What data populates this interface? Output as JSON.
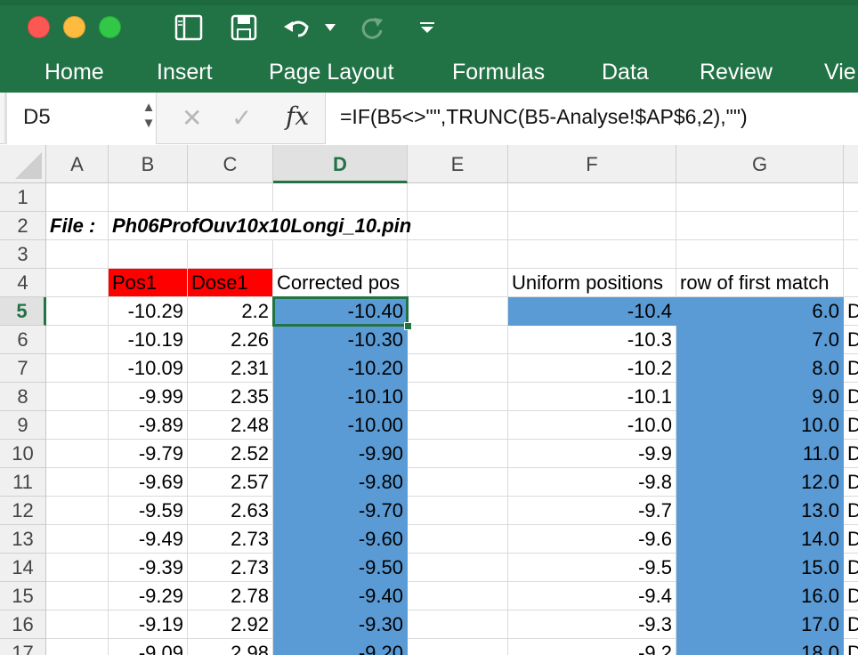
{
  "ribbon": {
    "tabs": [
      "Home",
      "Insert",
      "Page Layout",
      "Formulas",
      "Data",
      "Review",
      "Vie"
    ]
  },
  "formula_bar": {
    "name_box": "D5",
    "cancel_icon": "x-icon",
    "enter_icon": "check-icon",
    "fx_label": "fx",
    "formula": "=IF(B5<>\"\",TRUNC(B5-Analyse!$AP$6,2),\"\")"
  },
  "columns": [
    "A",
    "B",
    "C",
    "D",
    "E",
    "F",
    "G"
  ],
  "selected_column": "D",
  "selected_row": "5",
  "rows": [
    {
      "n": "1",
      "A": "",
      "B": "",
      "C": "",
      "D": "",
      "F": "",
      "G": "",
      "H": ""
    },
    {
      "n": "2",
      "A": "File :",
      "B": "Ph06ProfOuv10x10Longi_10.pin",
      "C": "",
      "D": "",
      "F": "",
      "G": "",
      "H": ""
    },
    {
      "n": "3",
      "A": "",
      "B": "",
      "C": "",
      "D": "",
      "F": "",
      "G": "",
      "H": ""
    },
    {
      "n": "4",
      "A": "",
      "B": "Pos1",
      "C": "Dose1",
      "D": "Corrected pos",
      "F": "Uniform positions",
      "G": "row of first match",
      "H": ""
    },
    {
      "n": "5",
      "A": "",
      "B": "-10.29",
      "C": "2.2",
      "D": "-10.40",
      "F": "-10.4",
      "G": "6.0",
      "H": "D"
    },
    {
      "n": "6",
      "A": "",
      "B": "-10.19",
      "C": "2.26",
      "D": "-10.30",
      "F": "-10.3",
      "G": "7.0",
      "H": "D"
    },
    {
      "n": "7",
      "A": "",
      "B": "-10.09",
      "C": "2.31",
      "D": "-10.20",
      "F": "-10.2",
      "G": "8.0",
      "H": "D"
    },
    {
      "n": "8",
      "A": "",
      "B": "-9.99",
      "C": "2.35",
      "D": "-10.10",
      "F": "-10.1",
      "G": "9.0",
      "H": "D"
    },
    {
      "n": "9",
      "A": "",
      "B": "-9.89",
      "C": "2.48",
      "D": "-10.00",
      "F": "-10.0",
      "G": "10.0",
      "H": "D"
    },
    {
      "n": "10",
      "A": "",
      "B": "-9.79",
      "C": "2.52",
      "D": "-9.90",
      "F": "-9.9",
      "G": "11.0",
      "H": "D"
    },
    {
      "n": "11",
      "A": "",
      "B": "-9.69",
      "C": "2.57",
      "D": "-9.80",
      "F": "-9.8",
      "G": "12.0",
      "H": "D"
    },
    {
      "n": "12",
      "A": "",
      "B": "-9.59",
      "C": "2.63",
      "D": "-9.70",
      "F": "-9.7",
      "G": "13.0",
      "H": "D"
    },
    {
      "n": "13",
      "A": "",
      "B": "-9.49",
      "C": "2.73",
      "D": "-9.60",
      "F": "-9.6",
      "G": "14.0",
      "H": "D"
    },
    {
      "n": "14",
      "A": "",
      "B": "-9.39",
      "C": "2.73",
      "D": "-9.50",
      "F": "-9.5",
      "G": "15.0",
      "H": "D"
    },
    {
      "n": "15",
      "A": "",
      "B": "-9.29",
      "C": "2.78",
      "D": "-9.40",
      "F": "-9.4",
      "G": "16.0",
      "H": "D"
    },
    {
      "n": "16",
      "A": "",
      "B": "-9.19",
      "C": "2.92",
      "D": "-9.30",
      "F": "-9.3",
      "G": "17.0",
      "H": "D"
    },
    {
      "n": "17",
      "A": "",
      "B": "-9.09",
      "C": "2.98",
      "D": "-9.20",
      "F": "-9.2",
      "G": "18.0",
      "H": "D"
    }
  ],
  "colors": {
    "ribbon": "#217346",
    "highlight_blue": "#5b9bd5",
    "header_red": "#ff0000"
  }
}
